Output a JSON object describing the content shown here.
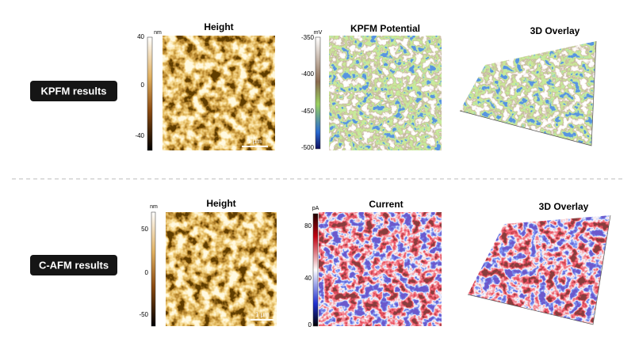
{
  "rows": [
    {
      "label": "KPFM results",
      "panels": [
        {
          "title": "Height",
          "colorbar": {
            "unit": "nm",
            "ticks": [
              "40",
              "0",
              "-40"
            ]
          },
          "scale_bar": "1 µm"
        },
        {
          "title": "KPFM Potential",
          "colorbar": {
            "unit": "mV",
            "ticks": [
              "-350",
              "-400",
              "-450",
              "-500"
            ]
          }
        },
        {
          "title": "3D Overlay"
        }
      ]
    },
    {
      "label": "C-AFM results",
      "panels": [
        {
          "title": "Height",
          "colorbar": {
            "unit": "nm",
            "ticks": [
              "50",
              "0",
              "-50"
            ]
          },
          "scale_bar": "1 µm"
        },
        {
          "title": "Current",
          "colorbar": {
            "unit": "pA",
            "ticks": [
              "80",
              "40",
              "0"
            ]
          }
        },
        {
          "title": "3D Overlay"
        }
      ]
    }
  ]
}
